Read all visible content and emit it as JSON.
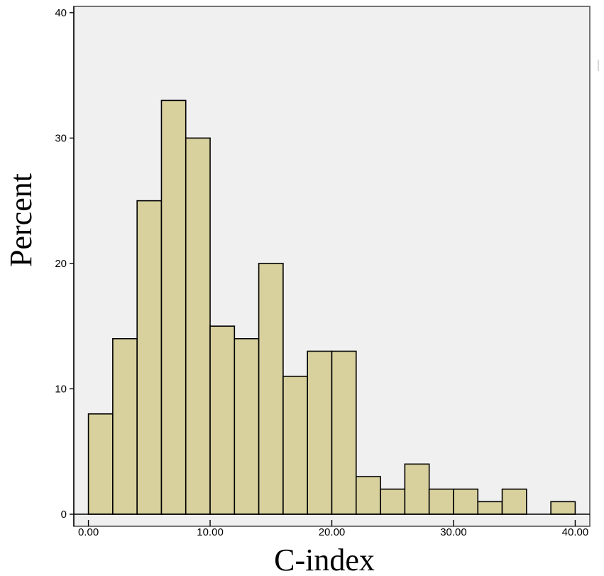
{
  "chart_data": {
    "type": "bar",
    "title": "",
    "xlabel": "C-index",
    "ylabel": "Percent",
    "bin_edges": [
      0,
      2,
      4,
      6,
      8,
      10,
      12,
      14,
      16,
      18,
      20,
      22,
      24,
      26,
      28,
      30,
      32,
      34,
      36,
      38,
      40
    ],
    "values": [
      8,
      14,
      25,
      33,
      30,
      15,
      14,
      20,
      11,
      13,
      13,
      3,
      2,
      4,
      2,
      2,
      1,
      2,
      0,
      1
    ],
    "xlim": [
      -1.2,
      41.2
    ],
    "ylim": [
      0,
      40.5
    ],
    "x_ticks": [
      0,
      10,
      20,
      30,
      40
    ],
    "x_tick_labels": [
      "0.00",
      "10.00",
      "20.00",
      "30.00",
      "40.00"
    ],
    "y_ticks": [
      0,
      10,
      20,
      30,
      40
    ],
    "y_tick_labels": [
      "0",
      "10",
      "20",
      "30",
      "40"
    ],
    "grid": false,
    "legend": "none",
    "colors": {
      "bar_fill": "#d8d19e",
      "plot_background": "#f0f0f0",
      "bar_stroke": "#000000"
    }
  }
}
